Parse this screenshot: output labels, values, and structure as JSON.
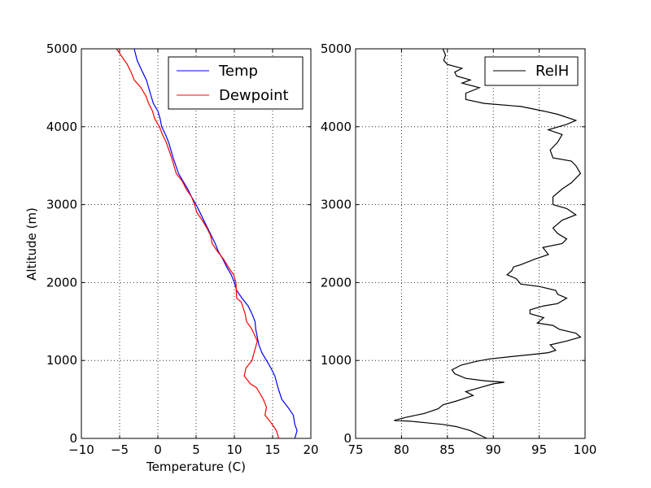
{
  "chart_data": [
    {
      "type": "line",
      "xlabel": "Temperature (C)",
      "ylabel": "Altitude (m)",
      "xlim": [
        -10,
        20
      ],
      "ylim": [
        0,
        5000
      ],
      "xticks": [
        -10,
        -5,
        0,
        5,
        10,
        15,
        20
      ],
      "yticks": [
        0,
        1000,
        2000,
        3000,
        4000,
        5000
      ],
      "xtick_labels": [
        "−10",
        "−5",
        "0",
        "5",
        "10",
        "15",
        "20"
      ],
      "ytick_labels": [
        "0",
        "1000",
        "2000",
        "3000",
        "4000",
        "5000"
      ],
      "grid": true,
      "legend_position": "top-right",
      "series": [
        {
          "name": "Temp",
          "color": "#0000ff",
          "x": [
            17.9,
            18.2,
            17.9,
            17.7,
            17.0,
            16.2,
            15.7,
            15.3,
            14.8,
            14.2,
            13.6,
            13.2,
            13.0,
            12.8,
            12.7,
            12.3,
            11.8,
            11.0,
            10.3,
            10.0,
            9.6,
            9.0,
            8.5,
            7.9,
            7.5,
            7.0,
            6.5,
            6.0,
            5.5,
            5.0,
            4.4,
            3.9,
            3.3,
            2.7,
            2.0,
            1.4,
            1.0,
            0.5,
            0.3,
            0.0,
            -0.6,
            -0.9,
            -1.2,
            -1.5,
            -2.0,
            -2.7,
            -3.1
          ],
          "y": [
            0,
            100,
            180,
            300,
            400,
            500,
            650,
            800,
            900,
            1000,
            1100,
            1200,
            1300,
            1400,
            1500,
            1600,
            1700,
            1800,
            1900,
            2000,
            2100,
            2200,
            2300,
            2400,
            2500,
            2600,
            2700,
            2800,
            2900,
            3000,
            3100,
            3200,
            3300,
            3400,
            3600,
            3800,
            3900,
            4000,
            4100,
            4200,
            4300,
            4400,
            4500,
            4600,
            4700,
            4850,
            5000
          ]
        },
        {
          "name": "Dewpoint",
          "color": "#ff0000",
          "x": [
            15.8,
            15.5,
            14.8,
            14.0,
            14.2,
            13.8,
            12.9,
            12.1,
            11.3,
            11.5,
            12.3,
            13.0,
            12.3,
            11.6,
            11.4,
            10.9,
            10.3,
            10.2,
            9.9,
            9.2,
            8.6,
            7.8,
            7.1,
            6.9,
            6.4,
            5.8,
            5.1,
            4.8,
            4.4,
            3.7,
            3.2,
            2.4,
            1.8,
            1.1,
            0.6,
            0.2,
            -0.4,
            -0.7,
            -1.2,
            -1.6,
            -2.2,
            -3.1,
            -3.5,
            -4.0,
            -4.7,
            -5.4
          ],
          "y": [
            0,
            100,
            200,
            300,
            400,
            500,
            650,
            700,
            800,
            900,
            1000,
            1250,
            1400,
            1500,
            1600,
            1750,
            1800,
            2000,
            2100,
            2200,
            2300,
            2400,
            2500,
            2600,
            2700,
            2800,
            2900,
            3000,
            3100,
            3200,
            3300,
            3400,
            3600,
            3800,
            3900,
            4000,
            4100,
            4200,
            4300,
            4400,
            4500,
            4600,
            4700,
            4800,
            4900,
            5000
          ]
        }
      ]
    },
    {
      "type": "line",
      "xlim": [
        75,
        100
      ],
      "ylim": [
        0,
        5000
      ],
      "xticks": [
        75,
        80,
        85,
        90,
        95,
        100
      ],
      "yticks": [
        0,
        1000,
        2000,
        3000,
        4000,
        5000
      ],
      "xtick_labels": [
        "75",
        "80",
        "85",
        "90",
        "95",
        "100"
      ],
      "ytick_labels": [
        "0",
        "1000",
        "2000",
        "3000",
        "4000",
        "5000"
      ],
      "grid": true,
      "legend_position": "top-right",
      "series": [
        {
          "name": "RelH",
          "color": "#000000",
          "x": [
            89.3,
            87.5,
            86.0,
            84.5,
            82.7,
            81.0,
            79.2,
            80.5,
            82.5,
            84.0,
            84.5,
            86.0,
            87.8,
            87.0,
            88.5,
            90.0,
            91.2,
            89.0,
            87.0,
            85.8,
            85.5,
            86.5,
            88.2,
            89.6,
            92.0,
            94.5,
            96.0,
            96.8,
            96.2,
            98.0,
            99.5,
            99.0,
            97.2,
            96.5,
            94.8,
            95.5,
            94.0,
            94.0,
            95.5,
            97.0,
            98.0,
            97.0,
            96.8,
            95.0,
            93.0,
            92.5,
            91.5,
            92.0,
            92.2,
            93.0,
            94.5,
            96.0,
            95.4,
            97.5,
            98.0,
            97.0,
            96.5,
            97.5,
            99.0,
            98.0,
            96.5,
            96.5,
            97.5,
            98.5,
            99.5,
            99.0,
            98.5,
            96.5,
            96.2,
            97.0,
            97.5,
            96.0,
            98.0,
            99.0,
            97.0,
            95.5,
            93.0,
            89.0,
            87.0,
            87.0,
            88.5,
            86.6,
            87.5,
            86.0,
            85.8,
            86.6,
            85.0,
            84.6,
            84.8,
            84.5
          ],
          "y": [
            0,
            100,
            150,
            180,
            200,
            220,
            230,
            270,
            320,
            380,
            430,
            480,
            550,
            600,
            650,
            700,
            720,
            740,
            770,
            830,
            880,
            940,
            990,
            1020,
            1050,
            1080,
            1100,
            1130,
            1200,
            1250,
            1300,
            1350,
            1400,
            1450,
            1480,
            1550,
            1600,
            1650,
            1700,
            1730,
            1800,
            1850,
            1900,
            1950,
            1980,
            2050,
            2100,
            2150,
            2200,
            2230,
            2300,
            2360,
            2450,
            2500,
            2560,
            2630,
            2700,
            2800,
            2870,
            2950,
            3000,
            3100,
            3200,
            3280,
            3400,
            3500,
            3560,
            3600,
            3700,
            3800,
            3900,
            3960,
            4030,
            4080,
            4160,
            4200,
            4260,
            4300,
            4350,
            4430,
            4500,
            4560,
            4600,
            4650,
            4700,
            4750,
            4800,
            4850,
            4920,
            5000
          ]
        }
      ]
    }
  ]
}
